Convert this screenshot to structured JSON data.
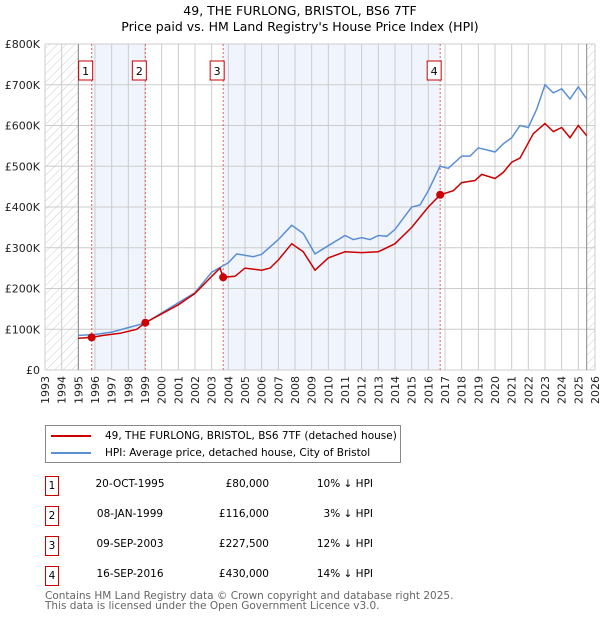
{
  "header": {
    "title": "49, THE FURLONG, BRISTOL, BS6 7TF",
    "subtitle": "Price paid vs. HM Land Registry's House Price Index (HPI)"
  },
  "chart_data": {
    "type": "line",
    "title": "49, THE FURLONG, BRISTOL, BS6 7TF",
    "subtitle": "Price paid vs. HM Land Registry's House Price Index (HPI)",
    "xlim": [
      1993,
      2026
    ],
    "ylim": [
      0,
      800000
    ],
    "x_ticks": [
      "1993",
      "1994",
      "1995",
      "1996",
      "1997",
      "1998",
      "1999",
      "2000",
      "2001",
      "2002",
      "2003",
      "2004",
      "2005",
      "2006",
      "2007",
      "2008",
      "2009",
      "2010",
      "2011",
      "2012",
      "2013",
      "2014",
      "2015",
      "2016",
      "2017",
      "2018",
      "2019",
      "2020",
      "2021",
      "2022",
      "2023",
      "2024",
      "2025",
      "2026"
    ],
    "y_ticks": [
      {
        "v": 0,
        "label": "£0"
      },
      {
        "v": 100000,
        "label": "£100K"
      },
      {
        "v": 200000,
        "label": "£200K"
      },
      {
        "v": 300000,
        "label": "£300K"
      },
      {
        "v": 400000,
        "label": "£400K"
      },
      {
        "v": 500000,
        "label": "£500K"
      },
      {
        "v": 600000,
        "label": "£600K"
      },
      {
        "v": 700000,
        "label": "£700K"
      },
      {
        "v": 800000,
        "label": "£800K"
      }
    ],
    "grid": true,
    "data_range": [
      1995,
      2025.5
    ],
    "series": [
      {
        "name": "49, THE FURLONG, BRISTOL, BS6 7TF (detached house)",
        "color": "#cc0000",
        "x": [
          1995,
          1995.8,
          1996.5,
          1997.5,
          1998.5,
          1999.02,
          2000,
          2001,
          2002,
          2003,
          2003.5,
          2003.69,
          2004.4,
          2005,
          2006,
          2006.5,
          2007,
          2007.8,
          2008.5,
          2009.2,
          2010,
          2011,
          2012,
          2013,
          2014,
          2015,
          2016,
          2016.71,
          2017.5,
          2018,
          2018.8,
          2019.2,
          2020,
          2020.5,
          2021,
          2021.5,
          2022.3,
          2023,
          2023.5,
          2024,
          2024.5,
          2025,
          2025.5
        ],
        "y": [
          78000,
          80000,
          85000,
          90000,
          100000,
          116000,
          138000,
          160000,
          188000,
          230000,
          250000,
          227500,
          230000,
          250000,
          245000,
          250000,
          270000,
          310000,
          290000,
          245000,
          275000,
          290000,
          288000,
          290000,
          310000,
          350000,
          400000,
          430000,
          440000,
          460000,
          465000,
          480000,
          470000,
          485000,
          510000,
          520000,
          580000,
          605000,
          585000,
          595000,
          570000,
          600000,
          575000
        ]
      },
      {
        "name": "HPI: Average price, detached house, City of Bristol",
        "color": "#5b8fd4",
        "x": [
          1995,
          1996,
          1997,
          1998,
          1999,
          2000,
          2001,
          2002,
          2003,
          2004,
          2004.5,
          2005.5,
          2006,
          2007,
          2007.8,
          2008.5,
          2009.2,
          2010,
          2011,
          2011.5,
          2012,
          2012.5,
          2013,
          2013.5,
          2014,
          2015,
          2015.5,
          2016,
          2016.7,
          2017.2,
          2018,
          2018.5,
          2019,
          2019.5,
          2020,
          2020.5,
          2021,
          2021.5,
          2022,
          2022.5,
          2023,
          2023.5,
          2024,
          2024.5,
          2025,
          2025.5
        ],
        "y": [
          85000,
          87000,
          93000,
          104000,
          115000,
          140000,
          165000,
          190000,
          240000,
          263000,
          285000,
          278000,
          284000,
          320000,
          355000,
          335000,
          285000,
          305000,
          330000,
          320000,
          325000,
          320000,
          330000,
          328000,
          345000,
          400000,
          405000,
          440000,
          500000,
          495000,
          525000,
          525000,
          545000,
          540000,
          535000,
          555000,
          570000,
          600000,
          595000,
          640000,
          700000,
          680000,
          690000,
          665000,
          695000,
          665000
        ]
      }
    ],
    "sales": [
      {
        "label": "1",
        "date": "20-OCT-1995",
        "x": 1995.8,
        "price": "£80,000",
        "value": 80000,
        "hpi": "10% ↓ HPI"
      },
      {
        "label": "2",
        "date": "08-JAN-1999",
        "x": 1999.02,
        "price": "£116,000",
        "value": 116000,
        "hpi": "3% ↓ HPI"
      },
      {
        "label": "3",
        "date": "09-SEP-2003",
        "x": 2003.69,
        "price": "£227,500",
        "value": 227500,
        "hpi": "12% ↓ HPI"
      },
      {
        "label": "4",
        "date": "16-SEP-2016",
        "x": 2016.71,
        "price": "£430,000",
        "value": 430000,
        "hpi": "14% ↓ HPI"
      }
    ]
  },
  "legend": {
    "items": [
      {
        "label": "49, THE FURLONG, BRISTOL, BS6 7TF (detached house)",
        "color": "#cc0000"
      },
      {
        "label": "HPI: Average price, detached house, City of Bristol",
        "color": "#5b8fd4"
      }
    ]
  },
  "footer": {
    "line1": "Contains HM Land Registry data © Crown copyright and database right 2025.",
    "line2": "This data is licensed under the Open Government Licence v3.0."
  }
}
